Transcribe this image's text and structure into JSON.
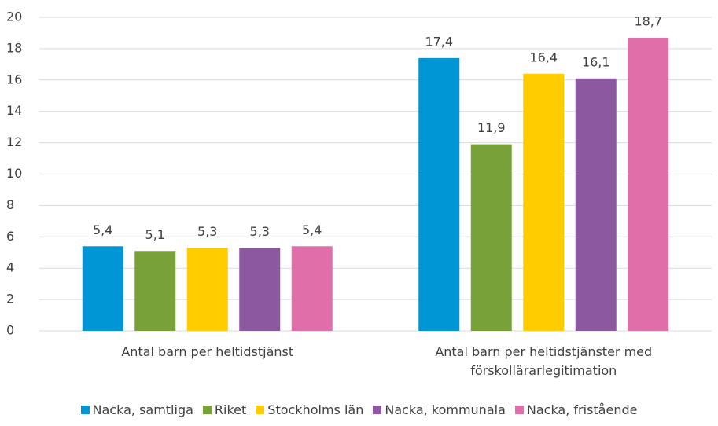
{
  "chart_data": {
    "type": "bar",
    "categories": [
      "Antal barn per heltidstjänst",
      "Antal barn per heltidstjänster med förskollärarlegitimation"
    ],
    "series": [
      {
        "name": "Nacka, samtliga",
        "color": "#0096d6",
        "values": [
          5.4,
          17.4
        ],
        "value_labels": [
          "5,4",
          "17,4"
        ]
      },
      {
        "name": "Riket",
        "color": "#78a239",
        "values": [
          5.1,
          11.9
        ],
        "value_labels": [
          "5,1",
          "11,9"
        ]
      },
      {
        "name": "Stockholms län",
        "color": "#ffcc00",
        "values": [
          5.3,
          16.4
        ],
        "value_labels": [
          "5,3",
          "16,4"
        ]
      },
      {
        "name": "Nacka, kommunala",
        "color": "#8c58a0",
        "values": [
          5.3,
          16.1
        ],
        "value_labels": [
          "5,3",
          "16,1"
        ]
      },
      {
        "name": "Nacka, fristående",
        "color": "#e06fa9",
        "values": [
          5.4,
          18.7
        ],
        "value_labels": [
          "5,4",
          "18,7"
        ]
      }
    ],
    "ylim": [
      0,
      20
    ],
    "yticks": [
      0,
      2,
      4,
      6,
      8,
      10,
      12,
      14,
      16,
      18,
      20
    ],
    "grid": true,
    "legend": "bottom"
  }
}
